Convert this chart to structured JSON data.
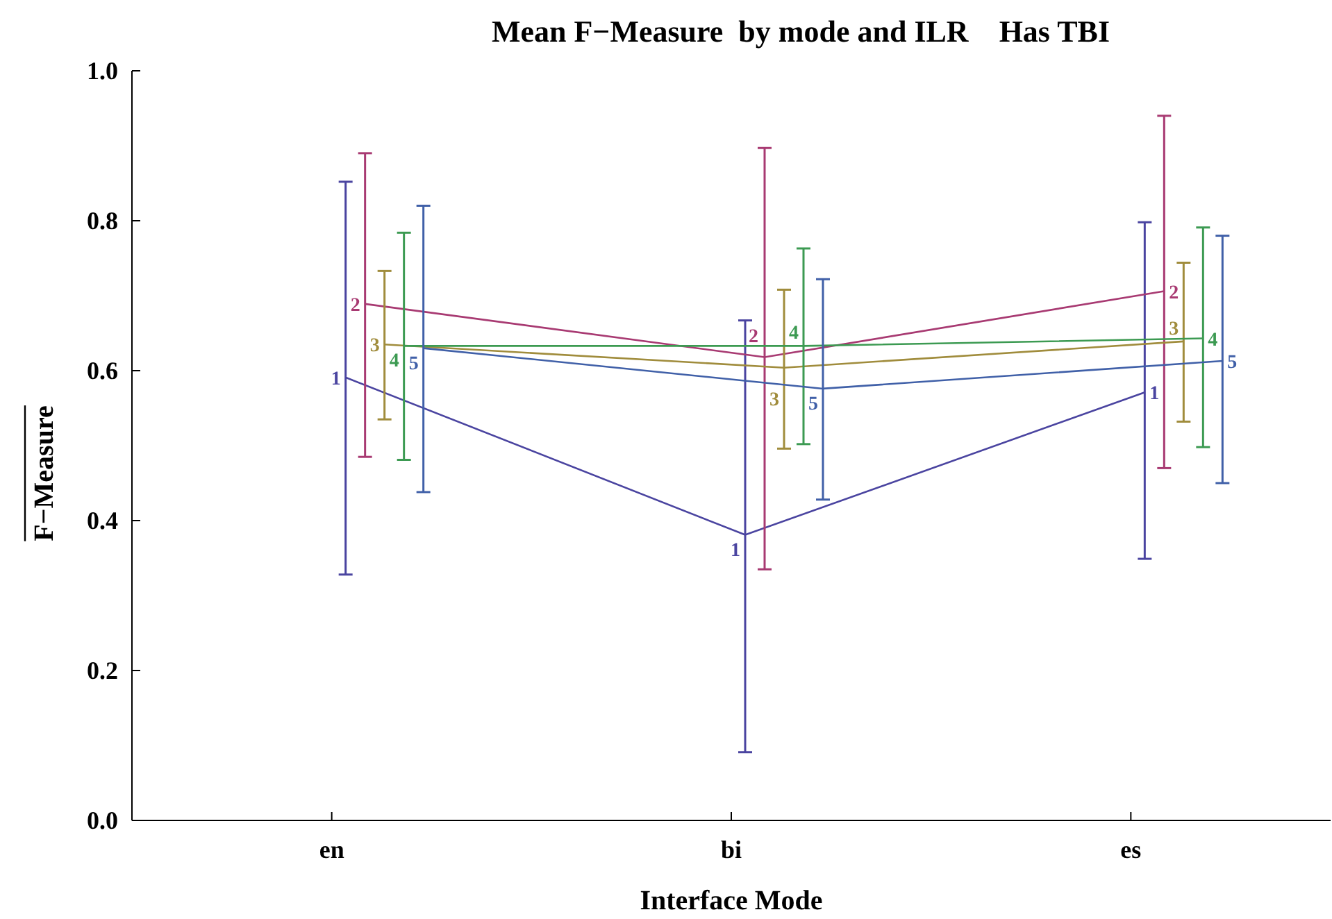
{
  "chart_data": {
    "type": "line",
    "title": "Mean F−Measure  by mode and ILR    Has TBI",
    "xlabel": "Interface Mode",
    "ylabel": "F−Measure",
    "categories": [
      "en",
      "bi",
      "es"
    ],
    "series": [
      {
        "name": "1",
        "color": "#4a44a0",
        "values": [
          0.591,
          0.381,
          0.571
        ],
        "errors": [
          [
            0.328,
            0.852
          ],
          [
            0.091,
            0.667
          ],
          [
            0.349,
            0.798
          ]
        ]
      },
      {
        "name": "2",
        "color": "#a83a72",
        "values": [
          0.689,
          0.618,
          0.706
        ],
        "errors": [
          [
            0.485,
            0.89
          ],
          [
            0.335,
            0.897
          ],
          [
            0.47,
            0.94
          ]
        ]
      },
      {
        "name": "3",
        "color": "#a08c3c",
        "values": [
          0.635,
          0.604,
          0.639
        ],
        "errors": [
          [
            0.535,
            0.733
          ],
          [
            0.496,
            0.708
          ],
          [
            0.532,
            0.744
          ]
        ]
      },
      {
        "name": "4",
        "color": "#3c9a52",
        "values": [
          0.633,
          0.633,
          0.643
        ],
        "errors": [
          [
            0.481,
            0.784
          ],
          [
            0.502,
            0.763
          ],
          [
            0.498,
            0.791
          ]
        ]
      },
      {
        "name": "5",
        "color": "#4060a8",
        "values": [
          0.63,
          0.576,
          0.613
        ],
        "errors": [
          [
            0.438,
            0.82
          ],
          [
            0.428,
            0.722
          ],
          [
            0.45,
            0.78
          ]
        ]
      }
    ],
    "ylim": [
      0,
      1.0
    ],
    "yticks": [
      {
        "value": 0,
        "label": "0.0"
      },
      {
        "value": 0.2,
        "label": "0.2"
      },
      {
        "value": 0.4,
        "label": "0.4"
      },
      {
        "value": 0.6,
        "label": "0.6"
      },
      {
        "value": 0.8,
        "label": "0.8"
      },
      {
        "value": 1.0,
        "label": "1.0"
      }
    ],
    "grid": false,
    "legend": false
  }
}
